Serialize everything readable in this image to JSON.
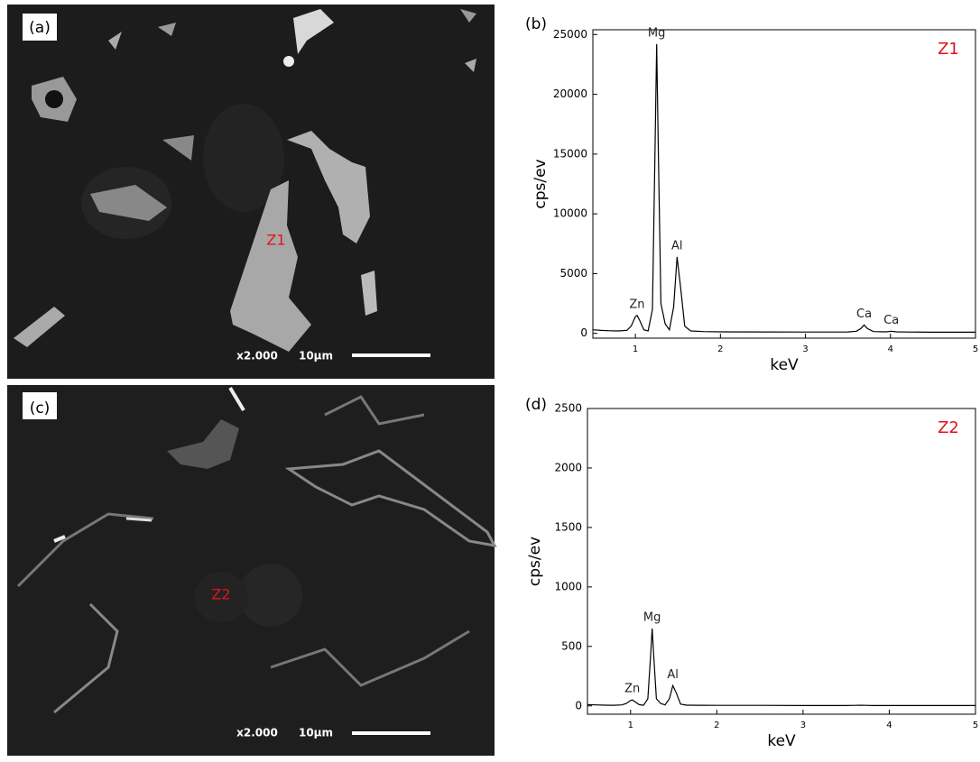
{
  "images": [
    {
      "panel": "(a)",
      "marker": "Z1",
      "magnification": "x2.000",
      "scale": "10μm"
    },
    {
      "panel": "(c)",
      "marker": "Z2",
      "magnification": "x2.000",
      "scale": "10μm"
    }
  ],
  "chart_data": [
    {
      "type": "line",
      "panel": "(b)",
      "tag": "Z1",
      "x_label": "keV",
      "y_label": "cps/ev",
      "color": "#000000",
      "x": [
        0.5,
        0.6,
        0.7,
        0.8,
        0.9,
        0.95,
        1.0,
        1.02,
        1.05,
        1.1,
        1.15,
        1.2,
        1.23,
        1.25,
        1.27,
        1.3,
        1.35,
        1.4,
        1.45,
        1.49,
        1.53,
        1.58,
        1.65,
        1.8,
        2.0,
        2.5,
        3.0,
        3.5,
        3.6,
        3.65,
        3.69,
        3.73,
        3.8,
        3.95,
        4.01,
        4.07,
        4.2,
        4.5,
        5.0
      ],
      "values": [
        300,
        250,
        220,
        200,
        260,
        600,
        1400,
        1500,
        1100,
        300,
        200,
        2000,
        15000,
        24200,
        15000,
        2500,
        800,
        300,
        2200,
        6400,
        4000,
        600,
        200,
        150,
        130,
        120,
        110,
        120,
        180,
        400,
        700,
        400,
        150,
        130,
        180,
        130,
        110,
        100,
        100
      ],
      "annotations": [
        {
          "text": "Zn",
          "x": 1.02
        },
        {
          "text": "Mg",
          "x": 1.25
        },
        {
          "text": "Al",
          "x": 1.49
        },
        {
          "text": "Ca",
          "x": 3.69
        },
        {
          "text": "Ca",
          "x": 4.01
        }
      ],
      "xlim": [
        0.5,
        5
      ],
      "xticks": [
        1,
        2,
        3,
        4,
        5
      ],
      "ylim": [
        -400,
        25400
      ],
      "yticks": [
        0,
        5000,
        10000,
        15000,
        20000,
        25000
      ]
    },
    {
      "type": "line",
      "panel": "(d)",
      "tag": "Z2",
      "x_label": "keV",
      "y_label": "cps/ev",
      "color": "#000000",
      "x": [
        0.5,
        0.6,
        0.7,
        0.8,
        0.9,
        0.95,
        1.0,
        1.02,
        1.05,
        1.1,
        1.15,
        1.2,
        1.23,
        1.25,
        1.27,
        1.3,
        1.35,
        1.4,
        1.45,
        1.49,
        1.53,
        1.58,
        1.65,
        1.8,
        2.0,
        2.5,
        3.0,
        3.5,
        3.6,
        3.65,
        3.69,
        3.73,
        3.8,
        3.95,
        4.01,
        4.07,
        4.2,
        4.5,
        5.0
      ],
      "values": [
        10,
        8,
        6,
        5,
        8,
        20,
        45,
        50,
        35,
        10,
        5,
        60,
        400,
        650,
        400,
        60,
        20,
        8,
        60,
        170,
        110,
        15,
        6,
        5,
        4,
        4,
        3,
        3,
        4,
        5,
        5,
        4,
        3,
        3,
        3,
        3,
        3,
        3,
        3
      ],
      "annotations": [
        {
          "text": "Zn",
          "x": 1.02
        },
        {
          "text": "Mg",
          "x": 1.25
        },
        {
          "text": "Al",
          "x": 1.49
        }
      ],
      "xlim": [
        0.5,
        5
      ],
      "xticks": [
        1,
        2,
        3,
        4,
        5
      ],
      "ylim": [
        -70,
        2500
      ],
      "yticks": [
        0,
        500,
        1000,
        1500,
        2000,
        2500
      ]
    }
  ]
}
